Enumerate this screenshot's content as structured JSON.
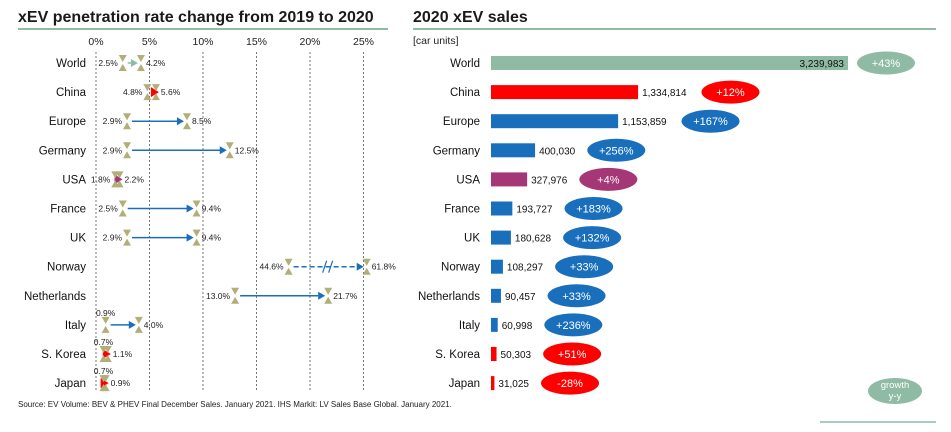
{
  "source_text": "Source: EV Volume: BEV & PHEV Final December Sales. January 2021. IHS Markit: LV Sales Base Global. January 2021.",
  "growth_legend": [
    "growth",
    "y-y"
  ],
  "colors": {
    "accent_green": "#8fbba5",
    "blue": "#1a6fbd",
    "red": "#ff0000",
    "magenta": "#a53776",
    "title_rule": "#8fbba5",
    "arrow_blue": "#1a6fbd",
    "marker_khaki": "#b2ae78"
  },
  "chart_data": [
    {
      "type": "dumbbell",
      "title": "xEV penetration rate change from 2019 to 2020",
      "x_ticks": [
        "0%",
        "5%",
        "10%",
        "15%",
        "20%",
        "25%"
      ],
      "xlim": [
        0,
        25
      ],
      "grid": "dotted vertical",
      "categories": [
        "World",
        "China",
        "Europe",
        "Germany",
        "USA",
        "France",
        "UK",
        "Norway",
        "Netherlands",
        "Italy",
        "S. Korea",
        "Japan"
      ],
      "from_2019": [
        2.5,
        4.8,
        2.9,
        2.9,
        1.8,
        2.5,
        2.9,
        44.6,
        13.0,
        0.9,
        0.7,
        0.7
      ],
      "to_2020": [
        4.2,
        5.6,
        8.5,
        12.5,
        2.2,
        9.4,
        9.4,
        61.8,
        21.7,
        4.0,
        1.1,
        0.9
      ],
      "from_labels": [
        "2.5%",
        "4.8%",
        "2.9%",
        "2.9%",
        "1.8%",
        "2.5%",
        "2.9%",
        "44.6%",
        "13.0%",
        "0.9%",
        "0.7%",
        "0.7%"
      ],
      "to_labels": [
        "4.2%",
        "5.6%",
        "8.5%",
        "12.5%",
        "2.2%",
        "9.4%",
        "9.4%",
        "61.8%",
        "21.7%",
        "4.0%",
        "1.1%",
        "0.9%"
      ],
      "axis_break": "Norway"
    },
    {
      "type": "bar",
      "title": "2020 xEV sales",
      "unit_label": "[car units]",
      "categories": [
        "World",
        "China",
        "Europe",
        "Germany",
        "USA",
        "France",
        "UK",
        "Norway",
        "Netherlands",
        "Italy",
        "S. Korea",
        "Japan"
      ],
      "values": [
        3239983,
        1334814,
        1153859,
        400030,
        327976,
        193727,
        180628,
        108297,
        90457,
        60998,
        50303,
        31025
      ],
      "value_labels": [
        "3,239,983",
        "1,334,814",
        "1,153,859",
        "400,030",
        "327,976",
        "193,727",
        "180,628",
        "108,297",
        "90,457",
        "60,998",
        "50,303",
        "31,025"
      ],
      "growth_labels": [
        "+43%",
        "+12%",
        "+167%",
        "+256%",
        "+4%",
        "+183%",
        "+132%",
        "+33%",
        "+33%",
        "+236%",
        "+51%",
        "-28%"
      ],
      "bar_colors": [
        "#8fbba5",
        "#ff0000",
        "#1a6fbd",
        "#1a6fbd",
        "#a53776",
        "#1a6fbd",
        "#1a6fbd",
        "#1a6fbd",
        "#1a6fbd",
        "#1a6fbd",
        "#ff0000",
        "#ff0000"
      ]
    }
  ]
}
